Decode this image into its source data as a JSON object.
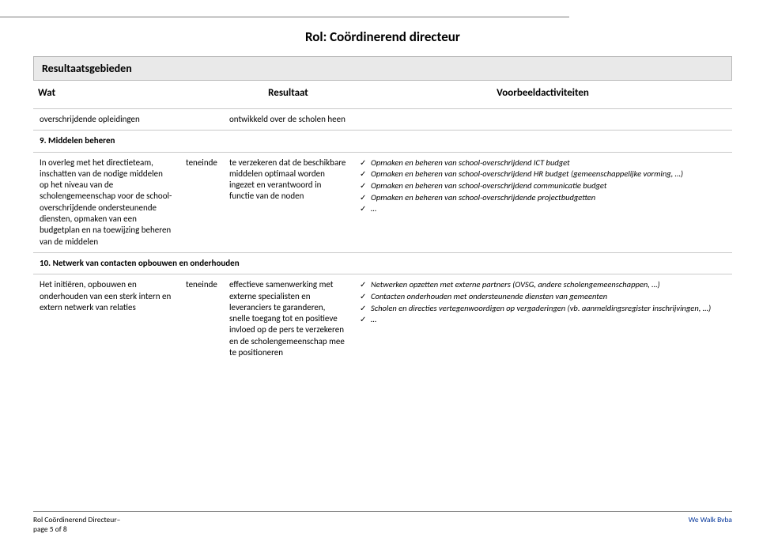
{
  "title": "Rol: Coördinerend directeur",
  "section_header": "Resultaatsgebieden",
  "columns": {
    "wat": "Wat",
    "resultaat": "Resultaat",
    "voorbeeld": "Voorbeeldactiviteiten"
  },
  "teneinde": "teneinde",
  "row_top": {
    "wat": "overschrijdende opleidingen",
    "res": "ontwikkeld over de scholen heen"
  },
  "section9": {
    "heading": "9.   Middelen beheren",
    "wat": "In overleg met het directieteam, inschatten van de nodige middelen op het niveau van de scholengemeenschap voor de school-overschrijdende ondersteunende diensten, opmaken van een budgetplan en na toewijzing beheren van de middelen",
    "res": "te verzekeren dat de beschikbare middelen optimaal worden ingezet en verantwoord  in functie van de noden",
    "bullets": [
      "Opmaken en beheren van school-overschrijdend ICT budget",
      "Opmaken en beheren van school-overschrijdend HR budget (gemeenschappelijke vorming, …)",
      "Opmaken en beheren van school-overschrijdend communicatie budget",
      "Opmaken en beheren van school-overschrijdende projectbudgetten",
      "…"
    ]
  },
  "section10": {
    "heading": "10.  Netwerk van contacten opbouwen en onderhouden",
    "wat": "Het initiëren, opbouwen en onderhouden van een sterk intern en extern netwerk van relaties",
    "res": "effectieve samenwerking met externe specialisten en leveranciers te garanderen, snelle toegang tot en positieve invloed op de pers te verzekeren en de scholengemeenschap mee te positioneren",
    "bullets": [
      "Netwerken opzetten met externe partners (OVSG, andere scholengemeenschappen, …)",
      "Contacten onderhouden met ondersteunende diensten van gemeenten",
      "Scholen en directies vertegenwoordigen op vergaderingen (vb. aanmeldingsregister inschrijvingen, …)",
      "…"
    ]
  },
  "footer": {
    "left_line1": "Rol Coördinerend Directeur–",
    "left_line2": "page 5 of  8",
    "right": "We Walk Bvba"
  }
}
